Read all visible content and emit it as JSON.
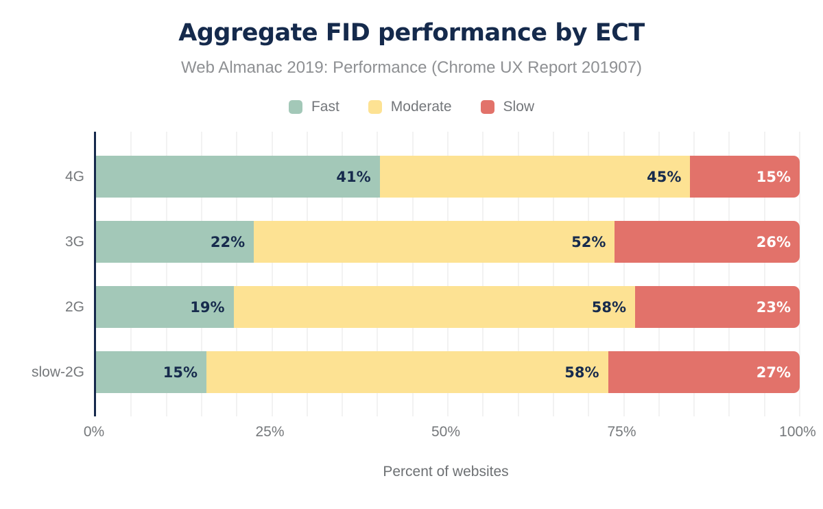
{
  "chart_data": {
    "type": "bar",
    "variant": "horizontal-stacked",
    "title": "Aggregate FID performance by ECT",
    "subtitle": "Web Almanac 2019: Performance (Chrome UX Report 201907)",
    "xlabel": "Percent of websites",
    "categories": [
      "4G",
      "3G",
      "2G",
      "slow-2G"
    ],
    "series": [
      {
        "name": "Fast",
        "color": "#a3c8b8",
        "label_color": "#172b4d",
        "values": [
          41,
          22,
          19,
          15
        ]
      },
      {
        "name": "Moderate",
        "color": "#fde293",
        "label_color": "#172b4d",
        "values": [
          45,
          52,
          58,
          58
        ]
      },
      {
        "name": "Slow",
        "color": "#e2726a",
        "label_color": "#ffffff",
        "values": [
          15,
          26,
          23,
          27
        ]
      }
    ],
    "value_suffix": "%",
    "xlim": [
      0,
      100
    ],
    "xticks": [
      "0%",
      "25%",
      "50%",
      "75%",
      "100%"
    ],
    "grid": true,
    "grid_step": 5,
    "legend_position": "top"
  },
  "colors": {
    "background": "#ffffff",
    "title_text": "#152a4c",
    "subtitle_text": "#8e9093",
    "axis_line": "#16294c",
    "tick_label": "#75787b",
    "category_label": "#75787b",
    "legend_label": "#73767a",
    "xlabel_text": "#6d7073",
    "gridline": "#f2f2f2"
  }
}
